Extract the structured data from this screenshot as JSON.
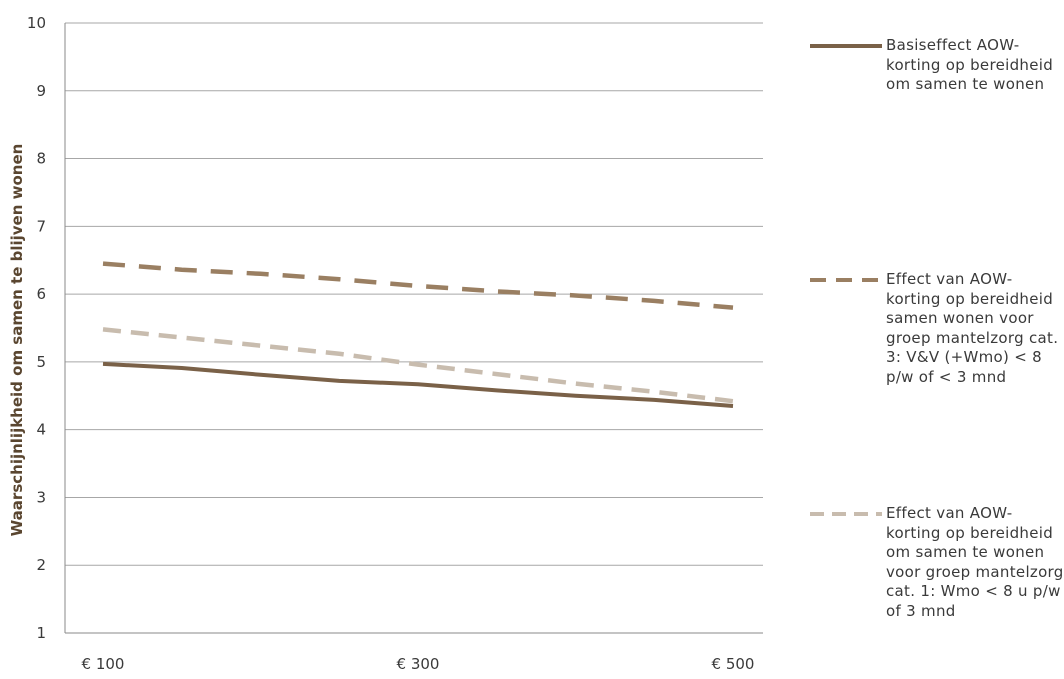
{
  "chart_data": {
    "type": "line",
    "x": [
      "€ 100",
      "€ 300",
      "€ 500"
    ],
    "x_values": [
      100,
      150,
      200,
      250,
      300,
      350,
      400,
      450,
      500
    ],
    "ylabel": "Waarschijnlijkheid  om samen te blijven wonen",
    "ylim": [
      1,
      10
    ],
    "yticks": [
      "1",
      "2",
      "3",
      "4",
      "5",
      "6",
      "7",
      "8",
      "9",
      "10"
    ],
    "grid": true,
    "legend_position": "right",
    "series": [
      {
        "name": "Basiseffect AOW-korting op bereidheid om samen te wonen",
        "style": "solid",
        "color": "#7a6148",
        "values": [
          4.97,
          4.91,
          4.81,
          4.72,
          4.67,
          4.58,
          4.5,
          4.44,
          4.35
        ]
      },
      {
        "name": "Effect van AOW-korting op bereidheid samen wonen voor groep mantelzorg cat. 3: V&V (+Wmo) < 8 p/w of < 3 mnd",
        "style": "dashed",
        "color": "#9a7f62",
        "values": [
          6.45,
          6.36,
          6.3,
          6.22,
          6.12,
          6.04,
          5.98,
          5.9,
          5.8
        ]
      },
      {
        "name": "Effect van AOW-korting op bereidheid om samen te wonen voor groep mantelzorg cat. 1: Wmo < 8 u p/w of 3 mnd",
        "style": "dashed-light",
        "color": "#c8bcae",
        "values": [
          5.48,
          5.36,
          5.24,
          5.12,
          4.96,
          4.82,
          4.68,
          4.56,
          4.42
        ]
      }
    ]
  }
}
